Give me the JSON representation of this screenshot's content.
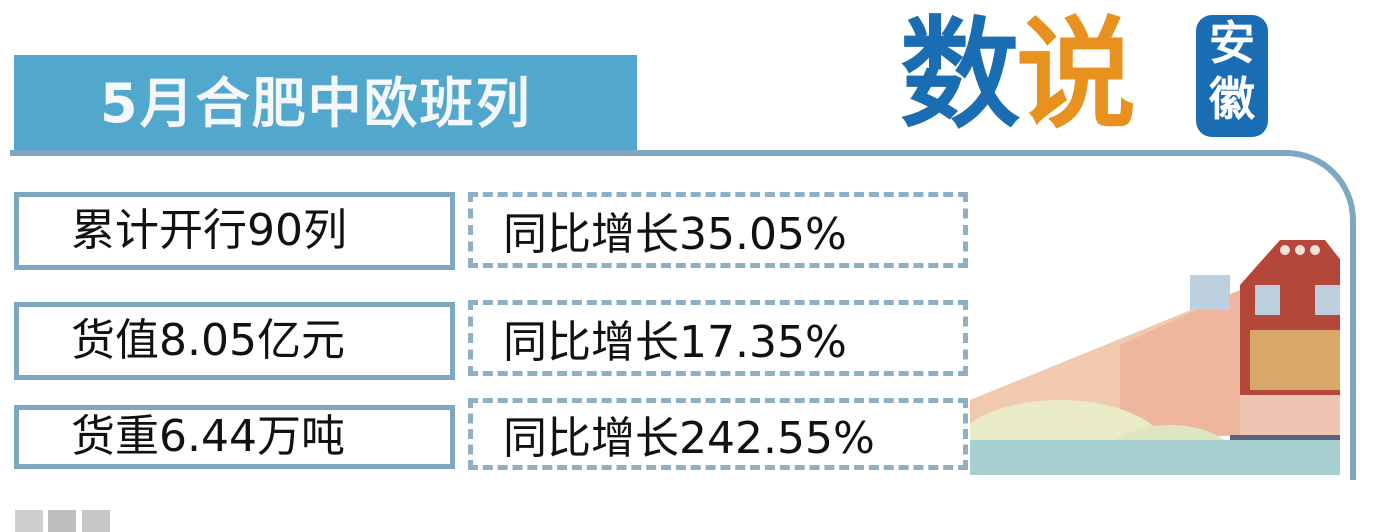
{
  "header": {
    "title": "5月合肥中欧班列"
  },
  "logo": {
    "part1": "数",
    "part2": "说",
    "badge_line1": "安",
    "badge_line2": "徽"
  },
  "rows": [
    {
      "label": "累计开行90列",
      "growth": "同比增长35.05%"
    },
    {
      "label": "货值8.05亿元",
      "growth": "同比增长17.35%"
    },
    {
      "label": "货重6.44万吨",
      "growth": "同比增长242.55%"
    }
  ],
  "colors": {
    "band": "#52a7cd",
    "border": "#7ea8c2",
    "logo_blue": "#1b6db3",
    "logo_orange": "#e8911f",
    "train_red": "#b5473a"
  },
  "illustration": "train-icon"
}
